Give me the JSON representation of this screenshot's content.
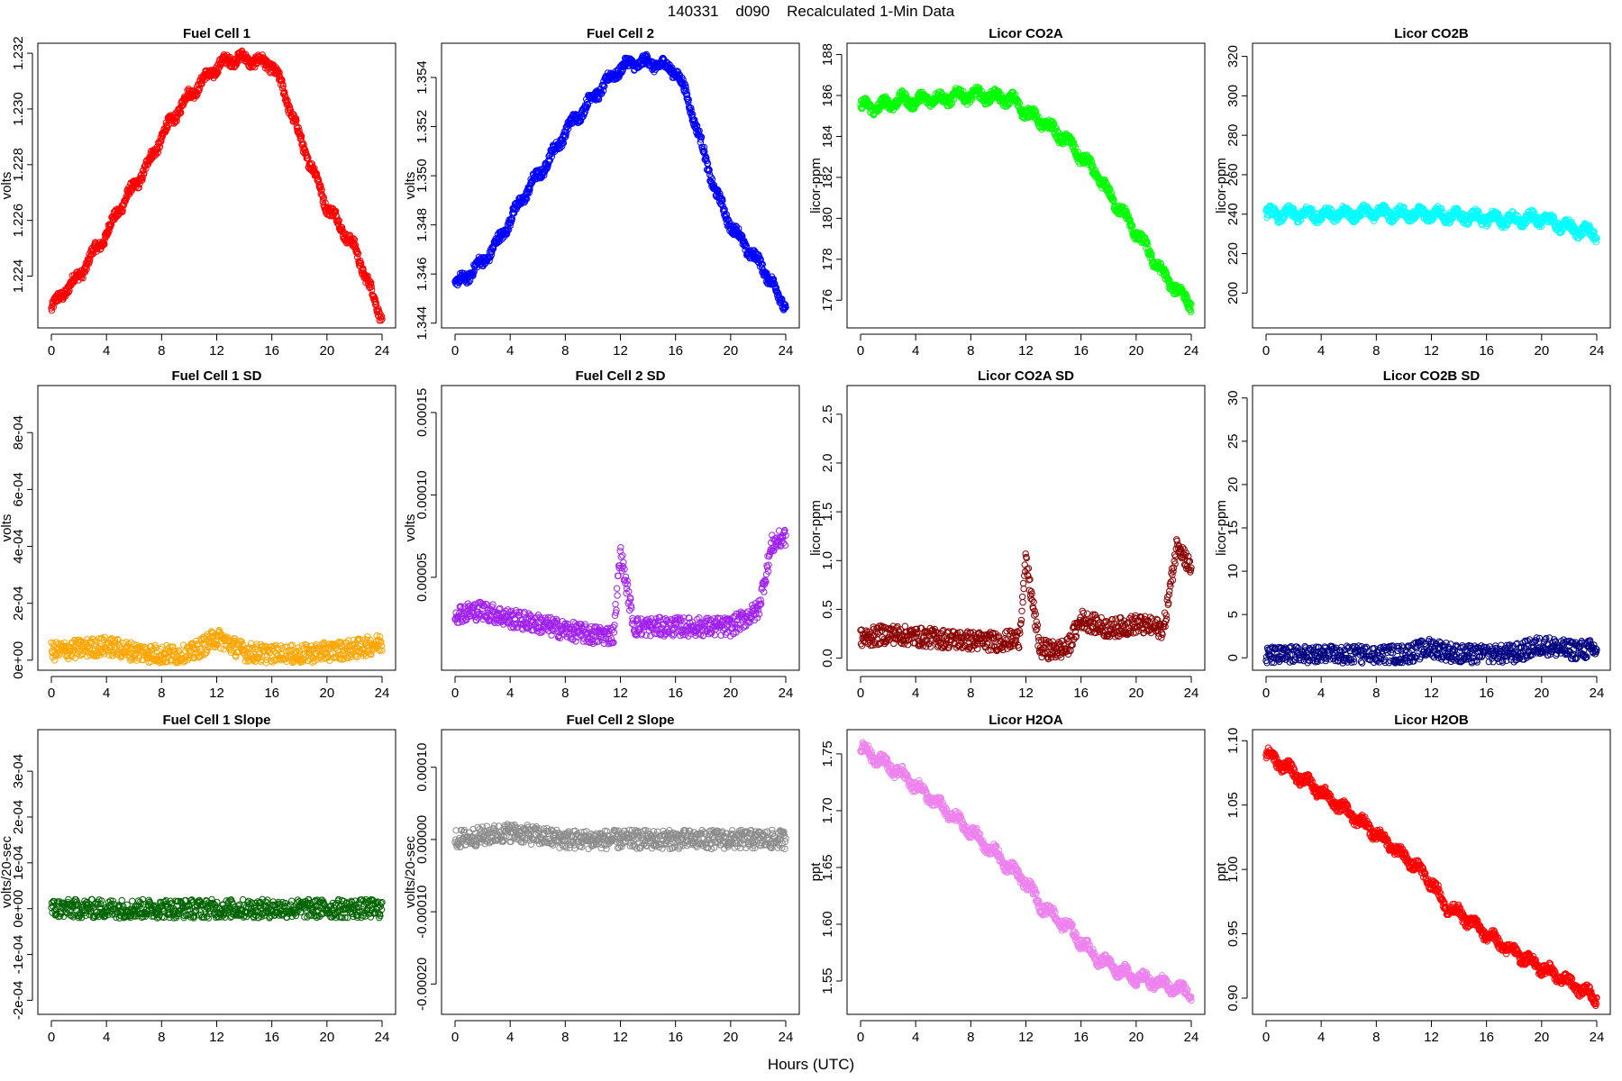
{
  "title": "140331    d090    Recalculated 1-Min Data",
  "xlabel": "Hours (UTC)",
  "chart_data": [
    {
      "type": "scatter",
      "title": "Fuel Cell 1",
      "ylabel": "volts",
      "color": "#ff0000",
      "xlim": [
        0,
        24
      ],
      "xticks": [
        "0",
        "4",
        "8",
        "12",
        "16",
        "20",
        "24"
      ],
      "ylim": [
        1.2224,
        1.2321
      ],
      "yticks": [
        {
          "v": 1.224,
          "label": "1.224"
        },
        {
          "v": 1.226,
          "label": "1.226"
        },
        {
          "v": 1.228,
          "label": "1.228"
        },
        {
          "v": 1.23,
          "label": "1.230"
        },
        {
          "v": 1.232,
          "label": "1.232"
        }
      ],
      "x": [
        0,
        1,
        2,
        3,
        4,
        5,
        6,
        7,
        8,
        9,
        10,
        11,
        12,
        13,
        14,
        15,
        16,
        17,
        18,
        19,
        20,
        21,
        22,
        23,
        23.5,
        24
      ],
      "y": [
        1.2228,
        1.2235,
        1.224,
        1.2248,
        1.2255,
        1.2265,
        1.2272,
        1.228,
        1.229,
        1.2298,
        1.2305,
        1.231,
        1.2315,
        1.2318,
        1.2318,
        1.2317,
        1.2316,
        1.2305,
        1.229,
        1.2278,
        1.2265,
        1.2258,
        1.225,
        1.2238,
        1.223,
        1.2225
      ]
    },
    {
      "type": "scatter",
      "title": "Fuel Cell 2",
      "ylabel": "volts",
      "color": "#0000ff",
      "xlim": [
        0,
        24
      ],
      "xticks": [
        "0",
        "4",
        "8",
        "12",
        "16",
        "20",
        "24"
      ],
      "ylim": [
        1.3441,
        1.3551
      ],
      "yticks": [
        {
          "v": 1.344,
          "label": "1.344"
        },
        {
          "v": 1.346,
          "label": "1.346"
        },
        {
          "v": 1.348,
          "label": "1.348"
        },
        {
          "v": 1.35,
          "label": "1.350"
        },
        {
          "v": 1.352,
          "label": "1.352"
        },
        {
          "v": 1.354,
          "label": "1.354"
        }
      ],
      "x": [
        0,
        1,
        2,
        3,
        4,
        5,
        6,
        7,
        8,
        9,
        10,
        11,
        12,
        13,
        14,
        15,
        16,
        17,
        18,
        19,
        20,
        21,
        22,
        23,
        23.5,
        24
      ],
      "y": [
        1.3455,
        1.346,
        1.3465,
        1.3472,
        1.3482,
        1.3492,
        1.35,
        1.3508,
        1.3518,
        1.3525,
        1.3532,
        1.3538,
        1.3544,
        1.3546,
        1.3546,
        1.3545,
        1.3543,
        1.353,
        1.351,
        1.3492,
        1.348,
        1.3472,
        1.3465,
        1.3457,
        1.345,
        1.3447
      ]
    },
    {
      "type": "scatter",
      "title": "Licor CO2A",
      "ylabel": "licor-ppm",
      "color": "#00ff00",
      "xlim": [
        0,
        24
      ],
      "xticks": [
        "0",
        "4",
        "8",
        "12",
        "16",
        "20",
        "24"
      ],
      "ylim": [
        175.0,
        188.2
      ],
      "yticks": [
        {
          "v": 176,
          "label": "176"
        },
        {
          "v": 178,
          "label": "178"
        },
        {
          "v": 180,
          "label": "180"
        },
        {
          "v": 182,
          "label": "182"
        },
        {
          "v": 184,
          "label": "184"
        },
        {
          "v": 186,
          "label": "186"
        },
        {
          "v": 188,
          "label": "188"
        }
      ],
      "x": [
        0,
        1,
        2,
        3,
        4,
        5,
        6,
        7,
        8,
        9,
        10,
        11,
        12,
        13,
        14,
        15,
        16,
        17,
        18,
        19,
        20,
        21,
        22,
        23,
        24
      ],
      "y": [
        185.5,
        185.4,
        185.6,
        185.8,
        185.7,
        185.9,
        185.8,
        186.0,
        186.0,
        186.0,
        185.9,
        185.8,
        185.2,
        184.8,
        184.3,
        183.8,
        183.0,
        182.3,
        181.2,
        180.3,
        179.3,
        178.3,
        177.2,
        176.5,
        175.8
      ]
    },
    {
      "type": "scatter",
      "title": "Licor CO2B",
      "ylabel": "licor-ppm",
      "color": "#00ffff",
      "xlim": [
        0,
        24
      ],
      "xticks": [
        "0",
        "4",
        "8",
        "12",
        "16",
        "20",
        "24"
      ],
      "ylim": [
        186,
        323
      ],
      "yticks": [
        {
          "v": 200,
          "label": "200"
        },
        {
          "v": 220,
          "label": "220"
        },
        {
          "v": 240,
          "label": "240"
        },
        {
          "v": 260,
          "label": "260"
        },
        {
          "v": 280,
          "label": "280"
        },
        {
          "v": 300,
          "label": "300"
        },
        {
          "v": 320,
          "label": "320"
        }
      ],
      "x": [
        0,
        2,
        4,
        6,
        8,
        10,
        12,
        14,
        16,
        18,
        20,
        22,
        24
      ],
      "y": [
        240,
        240,
        240,
        240,
        241,
        240,
        240,
        239,
        238,
        237,
        238,
        233,
        230
      ]
    },
    {
      "type": "scatter",
      "title": "Fuel Cell 1 SD",
      "ylabel": "volts",
      "color": "#ffa500",
      "xlim": [
        0,
        24
      ],
      "xticks": [
        "0",
        "4",
        "8",
        "12",
        "16",
        "20",
        "24"
      ],
      "ylim": [
        -1e-05,
        0.00094
      ],
      "yticks": [
        {
          "v": 0,
          "label": "0e+00"
        },
        {
          "v": 0.0002,
          "label": "2e-04"
        },
        {
          "v": 0.0004,
          "label": "4e-04"
        },
        {
          "v": 0.0006,
          "label": "6e-04"
        },
        {
          "v": 0.0008,
          "label": "8e-04"
        }
      ],
      "x": [
        0,
        2,
        4,
        6,
        8,
        10,
        12,
        14,
        16,
        18,
        20,
        22,
        24
      ],
      "y": [
        3e-05,
        4e-05,
        5e-05,
        3e-05,
        2e-05,
        2e-05,
        8e-05,
        3e-05,
        2e-05,
        2e-05,
        3e-05,
        4e-05,
        6e-05
      ]
    },
    {
      "type": "scatter",
      "title": "Fuel Cell 2 SD",
      "ylabel": "volts",
      "color": "#a020f0",
      "xlim": [
        0,
        24
      ],
      "xticks": [
        "0",
        "4",
        "8",
        "12",
        "16",
        "20",
        "24"
      ],
      "ylim": [
        -2e-06,
        0.000162
      ],
      "yticks": [
        {
          "v": 5e-05,
          "label": "0.00005"
        },
        {
          "v": 0.0001,
          "label": "0.00010"
        },
        {
          "v": 0.00015,
          "label": "0.00015"
        }
      ],
      "x": [
        0,
        2,
        4,
        6,
        8,
        10,
        11.5,
        12,
        13,
        14,
        16,
        18,
        20,
        22,
        23,
        24
      ],
      "y": [
        2.8e-05,
        3e-05,
        2.5e-05,
        2.2e-05,
        1.8e-05,
        1.5e-05,
        1.5e-05,
        6.5e-05,
        2e-05,
        2e-05,
        2e-05,
        2e-05,
        2e-05,
        3e-05,
        7e-05,
        7.5e-05
      ]
    },
    {
      "type": "scatter",
      "title": "Licor CO2A SD",
      "ylabel": "licor-ppm",
      "color": "#8b0000",
      "xlim": [
        0,
        24
      ],
      "xticks": [
        "0",
        "4",
        "8",
        "12",
        "16",
        "20",
        "24"
      ],
      "ylim": [
        -0.05,
        2.72
      ],
      "yticks": [
        {
          "v": 0,
          "label": "0.0"
        },
        {
          "v": 0.5,
          "label": "0.5"
        },
        {
          "v": 1,
          "label": "1.0"
        },
        {
          "v": 1.5,
          "label": "1.5"
        },
        {
          "v": 2,
          "label": "2.0"
        },
        {
          "v": 2.5,
          "label": "2.5"
        }
      ],
      "x": [
        0,
        2,
        4,
        6,
        8,
        10,
        11.5,
        12,
        13,
        14,
        15,
        16,
        18,
        20,
        22,
        23,
        24
      ],
      "y": [
        0.2,
        0.25,
        0.22,
        0.2,
        0.18,
        0.17,
        0.2,
        1.0,
        0.1,
        0.08,
        0.1,
        0.4,
        0.3,
        0.35,
        0.3,
        1.2,
        0.9
      ]
    },
    {
      "type": "scatter",
      "title": "Licor CO2B SD",
      "ylabel": "licor-ppm",
      "color": "#000080",
      "xlim": [
        0,
        24
      ],
      "xticks": [
        "0",
        "4",
        "8",
        "12",
        "16",
        "20",
        "24"
      ],
      "ylim": [
        -0.6,
        30.6
      ],
      "yticks": [
        {
          "v": 0,
          "label": "0"
        },
        {
          "v": 5,
          "label": "5"
        },
        {
          "v": 10,
          "label": "10"
        },
        {
          "v": 15,
          "label": "15"
        },
        {
          "v": 20,
          "label": "20"
        },
        {
          "v": 25,
          "label": "25"
        },
        {
          "v": 30,
          "label": "30"
        }
      ],
      "x": [
        0,
        2,
        4,
        6,
        8,
        10,
        12,
        14,
        16,
        18,
        20,
        22,
        24
      ],
      "y": [
        0.2,
        0.25,
        0.3,
        0.3,
        0.3,
        0.4,
        1.2,
        0.4,
        0.3,
        0.5,
        1.5,
        0.9,
        1.0
      ]
    },
    {
      "type": "scatter",
      "title": "Fuel Cell 1 Slope",
      "ylabel": "volts/20-sec",
      "color": "#006400",
      "xlim": [
        0,
        24
      ],
      "xticks": [
        "0",
        "4",
        "8",
        "12",
        "16",
        "20",
        "24"
      ],
      "ylim": [
        -0.000215,
        0.000375
      ],
      "yticks": [
        {
          "v": -0.0002,
          "label": "-2e-04"
        },
        {
          "v": -0.0001,
          "label": "-1e-04"
        },
        {
          "v": 0,
          "label": "0e+00"
        },
        {
          "v": 0.0001,
          "label": "1e-04"
        },
        {
          "v": 0.0002,
          "label": "2e-04"
        },
        {
          "v": 0.0003,
          "label": "3e-04"
        }
      ],
      "x": [
        0,
        4,
        8,
        12,
        16,
        20,
        24
      ],
      "y": [
        0,
        0,
        0,
        0,
        0,
        0,
        0
      ]
    },
    {
      "type": "scatter",
      "title": "Fuel Cell 2 Slope",
      "ylabel": "volts/20-sec",
      "color": "#8c8c8c",
      "xlim": [
        0,
        24
      ],
      "xticks": [
        "0",
        "4",
        "8",
        "12",
        "16",
        "20",
        "24"
      ],
      "ylim": [
        -0.000232,
        0.000142
      ],
      "yticks": [
        {
          "v": -0.0002,
          "label": "-0.00020"
        },
        {
          "v": -0.0001,
          "label": "-0.00010"
        },
        {
          "v": 0,
          "label": "0.00000"
        },
        {
          "v": 0.0001,
          "label": "0.00010"
        }
      ],
      "x": [
        0,
        4,
        8,
        12,
        16,
        20,
        24
      ],
      "y": [
        0,
        1e-05,
        0,
        0,
        0,
        0,
        0
      ]
    },
    {
      "type": "scatter",
      "title": "Licor H2OA",
      "ylabel": "ppt",
      "color": "#ee82ee",
      "xlim": [
        0,
        24
      ],
      "xticks": [
        "0",
        "4",
        "8",
        "12",
        "16",
        "20",
        "24"
      ],
      "ylim": [
        1.527,
        1.765
      ],
      "yticks": [
        {
          "v": 1.55,
          "label": "1.55"
        },
        {
          "v": 1.6,
          "label": "1.60"
        },
        {
          "v": 1.65,
          "label": "1.65"
        },
        {
          "v": 1.7,
          "label": "1.70"
        },
        {
          "v": 1.75,
          "label": "1.75"
        }
      ],
      "x": [
        0,
        1,
        2,
        3,
        4,
        5,
        6,
        7,
        8,
        9,
        10,
        11,
        12,
        13,
        14,
        15,
        16,
        17,
        18,
        19,
        20,
        21,
        22,
        23,
        24
      ],
      "y": [
        1.755,
        1.748,
        1.74,
        1.732,
        1.722,
        1.712,
        1.702,
        1.692,
        1.682,
        1.67,
        1.66,
        1.648,
        1.637,
        1.618,
        1.608,
        1.598,
        1.585,
        1.572,
        1.565,
        1.558,
        1.553,
        1.55,
        1.547,
        1.543,
        1.54
      ]
    },
    {
      "type": "scatter",
      "title": "Licor H2OB",
      "ylabel": "ppt",
      "color": "#ff0000",
      "xlim": [
        0,
        24
      ],
      "xticks": [
        "0",
        "4",
        "8",
        "12",
        "16",
        "20",
        "24"
      ],
      "ylim": [
        0.893,
        1.103
      ],
      "yticks": [
        {
          "v": 0.9,
          "label": "0.90"
        },
        {
          "v": 0.95,
          "label": "0.95"
        },
        {
          "v": 1.0,
          "label": "1.00"
        },
        {
          "v": 1.05,
          "label": "1.05"
        },
        {
          "v": 1.1,
          "label": "1.10"
        }
      ],
      "x": [
        0,
        1,
        2,
        3,
        4,
        5,
        6,
        7,
        8,
        9,
        10,
        11,
        12,
        13,
        14,
        15,
        16,
        17,
        18,
        19,
        20,
        21,
        22,
        23,
        24
      ],
      "y": [
        1.09,
        1.083,
        1.075,
        1.068,
        1.06,
        1.052,
        1.044,
        1.036,
        1.028,
        1.019,
        1.01,
        1.002,
        0.99,
        0.972,
        0.966,
        0.958,
        0.95,
        0.942,
        0.936,
        0.93,
        0.924,
        0.918,
        0.912,
        0.906,
        0.9
      ]
    }
  ]
}
